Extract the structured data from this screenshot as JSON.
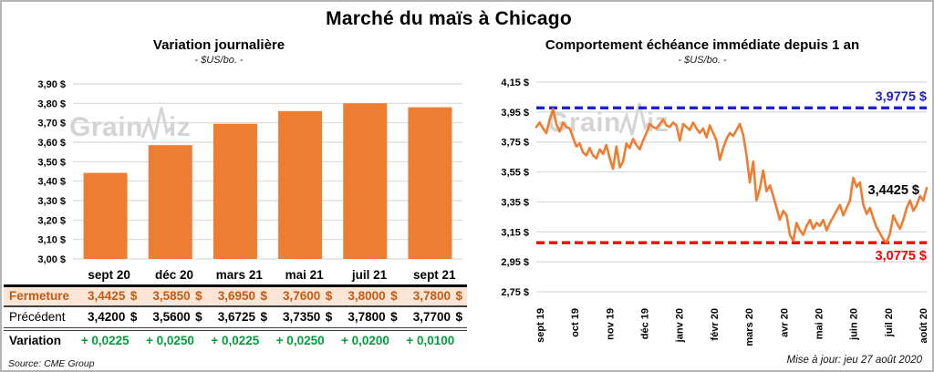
{
  "page": {
    "title": "Marché du maïs à Chicago",
    "source": "Source: CME Group",
    "updated": "Mise à jour: jeu 27 août 2020",
    "watermark": {
      "prefix": "Grain",
      "suffix": "iz"
    }
  },
  "colors": {
    "orange": "#ED7D31",
    "grid": "#D9D9D9",
    "close_bg": "#FBE5D6",
    "close_text": "#C55A11",
    "variation_green": "#00A03C",
    "high_blue": "#2222CC",
    "low_red": "#FF0000"
  },
  "table": {
    "columns": [
      "sept 20",
      "déc 20",
      "mars 21",
      "mai 21",
      "juil 21",
      "sept 21"
    ],
    "rows": [
      {
        "style": "close",
        "label": "Fermeture",
        "suffix": "$",
        "values": [
          "3,4425",
          "3,5850",
          "3,6950",
          "3,7600",
          "3,8000",
          "3,7800"
        ]
      },
      {
        "style": "prev",
        "label": "Précédent",
        "suffix": "$",
        "values": [
          "3,4200",
          "3,5600",
          "3,6725",
          "3,7350",
          "3,7800",
          "3,7700"
        ]
      },
      {
        "style": "var",
        "label": "Variation",
        "suffix": "",
        "values": [
          "+ 0,0225",
          "+ 0,0250",
          "+ 0,0225",
          "+ 0,0250",
          "+ 0,0200",
          "+ 0,0100"
        ]
      }
    ]
  },
  "chart_data": [
    {
      "type": "bar",
      "title": "Variation journalière",
      "subtitle": "- $US/bo. -",
      "categories": [
        "sept 20",
        "déc 20",
        "mars 21",
        "mai 21",
        "juil 21",
        "sept 21"
      ],
      "values": [
        3.4425,
        3.585,
        3.695,
        3.76,
        3.8,
        3.78
      ],
      "ylim": [
        3.0,
        3.9
      ],
      "yticks": [
        3.0,
        3.1,
        3.2,
        3.3,
        3.4,
        3.5,
        3.6,
        3.7,
        3.8,
        3.9
      ],
      "ytick_labels": [
        "3,00 $",
        "3,10 $",
        "3,20 $",
        "3,30 $",
        "3,40 $",
        "3,50 $",
        "3,60 $",
        "3,70 $",
        "3,80 $",
        "3,90 $"
      ],
      "bar_color": "#ED7D31",
      "grid": true,
      "legend": "none"
    },
    {
      "type": "line",
      "title": "Comportement échéance immédiate depuis 1 an",
      "subtitle": "- $US/bo. -",
      "x_tick_labels": [
        "sept 19",
        "oct 19",
        "nov 19",
        "déc 19",
        "janv 20",
        "févr 20",
        "mars 20",
        "avr 20",
        "mai 20",
        "juin 20",
        "juil 20",
        "août 20"
      ],
      "ylim": [
        2.75,
        4.15
      ],
      "yticks": [
        2.75,
        2.95,
        3.15,
        3.35,
        3.55,
        3.75,
        3.95,
        4.15
      ],
      "ytick_labels": [
        "2,75 $",
        "2,95 $",
        "3,15 $",
        "3,35 $",
        "3,55 $",
        "3,75 $",
        "3,95 $",
        "4,15 $"
      ],
      "line_color": "#ED7D31",
      "grid": true,
      "legend": "none",
      "high_line": {
        "value": 3.9775,
        "label": "3,9775 $",
        "color": "#2222CC"
      },
      "low_line": {
        "value": 3.0775,
        "label": "3,0775 $",
        "color": "#FF0000"
      },
      "last_point_label": {
        "value": 3.4425,
        "label": "3,4425 $",
        "color": "#000000"
      },
      "values": [
        3.85,
        3.88,
        3.84,
        3.81,
        3.9,
        3.97,
        3.87,
        3.82,
        3.88,
        3.85,
        3.84,
        3.78,
        3.72,
        3.74,
        3.68,
        3.66,
        3.71,
        3.66,
        3.64,
        3.7,
        3.67,
        3.73,
        3.64,
        3.57,
        3.72,
        3.58,
        3.62,
        3.74,
        3.71,
        3.77,
        3.73,
        3.7,
        3.76,
        3.81,
        3.87,
        3.85,
        3.84,
        3.87,
        3.9,
        3.86,
        3.85,
        3.88,
        3.86,
        3.76,
        3.87,
        3.85,
        3.83,
        3.88,
        3.84,
        3.81,
        3.84,
        3.78,
        3.86,
        3.81,
        3.76,
        3.63,
        3.71,
        3.77,
        3.81,
        3.79,
        3.83,
        3.87,
        3.8,
        3.66,
        3.48,
        3.62,
        3.36,
        3.44,
        3.56,
        3.42,
        3.46,
        3.39,
        3.31,
        3.23,
        3.29,
        3.26,
        3.13,
        3.09,
        3.21,
        3.16,
        3.13,
        3.19,
        3.23,
        3.17,
        3.21,
        3.19,
        3.23,
        3.16,
        3.21,
        3.25,
        3.29,
        3.33,
        3.26,
        3.31,
        3.36,
        3.51,
        3.45,
        3.48,
        3.33,
        3.27,
        3.31,
        3.24,
        3.18,
        3.14,
        3.1,
        3.08,
        3.14,
        3.26,
        3.21,
        3.17,
        3.23,
        3.31,
        3.36,
        3.29,
        3.33,
        3.39,
        3.36,
        3.4425
      ]
    }
  ]
}
